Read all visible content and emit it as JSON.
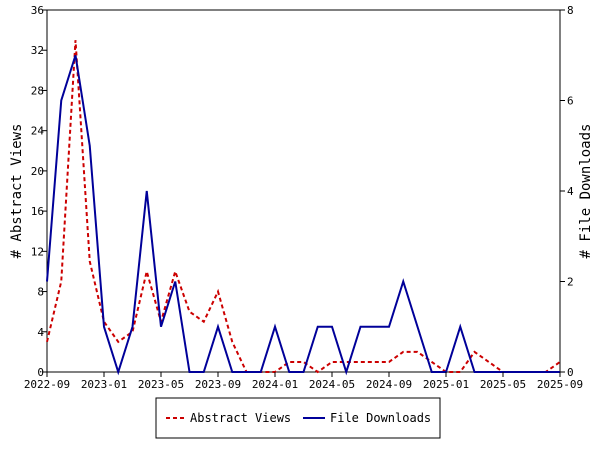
{
  "chart_data": {
    "type": "line",
    "x": [
      "2022-09",
      "2022-10",
      "2022-11",
      "2022-12",
      "2023-01",
      "2023-02",
      "2023-03",
      "2023-04",
      "2023-05",
      "2023-06",
      "2023-07",
      "2023-08",
      "2023-09",
      "2023-10",
      "2023-11",
      "2023-12",
      "2024-01",
      "2024-02",
      "2024-03",
      "2024-04",
      "2024-05",
      "2024-06",
      "2024-07",
      "2024-08",
      "2024-09",
      "2024-10",
      "2024-11",
      "2024-12",
      "2025-01",
      "2025-02",
      "2025-03",
      "2025-04",
      "2025-05",
      "2025-06",
      "2025-07",
      "2025-08",
      "2025-09"
    ],
    "x_ticks": [
      "2022-09",
      "2023-01",
      "2023-05",
      "2023-09",
      "2024-01",
      "2024-05",
      "2024-09",
      "2025-01",
      "2025-05",
      "2025-09"
    ],
    "xlim": [
      "2022-09",
      "2025-09"
    ],
    "series": [
      {
        "name": "Abstract Views",
        "axis": "left",
        "color": "#cc0000",
        "dash": "dashed",
        "values": [
          3,
          9,
          33,
          11,
          5,
          3,
          4,
          10,
          5,
          10,
          6,
          5,
          8,
          3,
          0,
          0,
          0,
          1,
          1,
          0,
          1,
          1,
          1,
          1,
          1,
          2,
          2,
          1,
          0,
          0,
          2,
          1,
          0,
          0,
          0,
          0,
          1
        ]
      },
      {
        "name": "File Downloads",
        "axis": "right",
        "color": "#000099",
        "dash": "solid",
        "values": [
          2,
          6,
          7,
          5,
          1,
          0,
          1,
          4,
          1,
          2,
          0,
          0,
          1,
          0,
          0,
          0,
          1,
          0,
          0,
          1,
          1,
          0,
          1,
          1,
          1,
          2,
          1,
          0,
          0,
          1,
          0,
          0,
          0,
          0,
          0,
          0,
          0
        ]
      }
    ],
    "y_left": {
      "label": "# Abstract Views",
      "ylim": [
        0,
        36
      ],
      "ticks": [
        0,
        4,
        8,
        12,
        16,
        20,
        24,
        28,
        32,
        36
      ]
    },
    "y_right": {
      "label": "# File Downloads",
      "ylim": [
        0,
        8
      ],
      "ticks": [
        0,
        2,
        4,
        6,
        8
      ]
    },
    "legend": {
      "position": "bottom",
      "entries": [
        "Abstract Views",
        "File Downloads"
      ]
    },
    "grid": false
  }
}
